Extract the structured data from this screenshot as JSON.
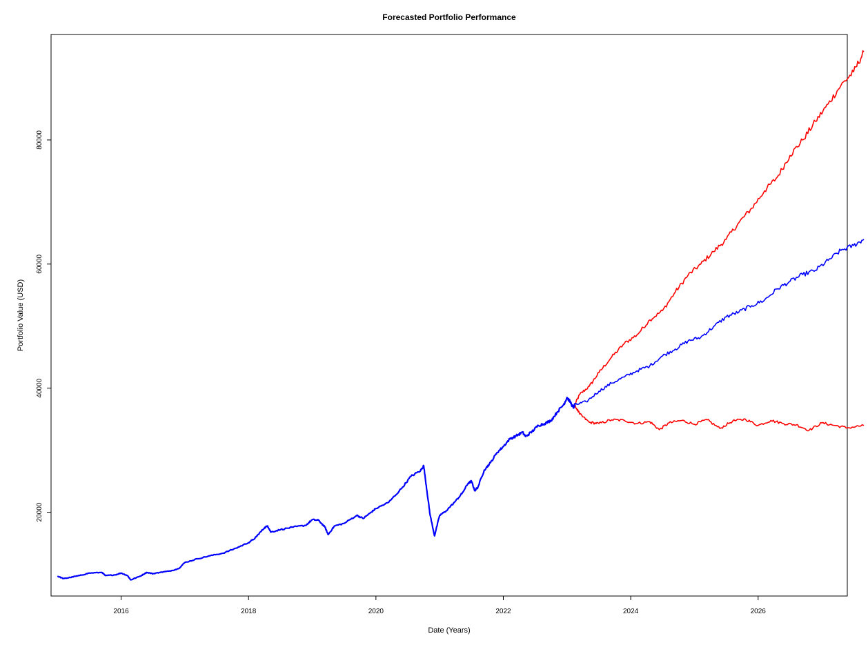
{
  "chart_data": {
    "type": "line",
    "title": "Forecasted Portfolio Performance",
    "xlabel": "Date (Years)",
    "ylabel": "Portfolio Value (USD)",
    "x_ticks": [
      2016,
      2018,
      2020,
      2022,
      2024,
      2026
    ],
    "y_ticks": [
      20000,
      40000,
      60000,
      80000
    ],
    "xlim": [
      2014.9,
      2027.4
    ],
    "ylim": [
      6500,
      97000
    ],
    "grid": false,
    "legend": "none",
    "series": [
      {
        "role": "historical",
        "color": "#0000ff",
        "points": [
          [
            2015.0,
            9700
          ],
          [
            2015.1,
            9300
          ],
          [
            2015.2,
            9500
          ],
          [
            2015.35,
            9800
          ],
          [
            2015.5,
            10200
          ],
          [
            2015.7,
            10300
          ],
          [
            2015.75,
            9800
          ],
          [
            2015.9,
            9900
          ],
          [
            2016.0,
            10200
          ],
          [
            2016.1,
            9800
          ],
          [
            2016.15,
            9100
          ],
          [
            2016.3,
            9700
          ],
          [
            2016.4,
            10300
          ],
          [
            2016.5,
            10100
          ],
          [
            2016.6,
            10300
          ],
          [
            2016.75,
            10500
          ],
          [
            2016.9,
            10900
          ],
          [
            2017.0,
            11900
          ],
          [
            2017.2,
            12500
          ],
          [
            2017.4,
            13000
          ],
          [
            2017.6,
            13400
          ],
          [
            2017.8,
            14200
          ],
          [
            2018.0,
            15100
          ],
          [
            2018.1,
            15800
          ],
          [
            2018.15,
            16400
          ],
          [
            2018.25,
            17500
          ],
          [
            2018.3,
            17800
          ],
          [
            2018.35,
            16800
          ],
          [
            2018.5,
            17200
          ],
          [
            2018.7,
            17600
          ],
          [
            2018.9,
            17900
          ],
          [
            2019.0,
            18800
          ],
          [
            2019.1,
            18700
          ],
          [
            2019.2,
            17600
          ],
          [
            2019.25,
            16400
          ],
          [
            2019.35,
            17800
          ],
          [
            2019.5,
            18200
          ],
          [
            2019.7,
            19500
          ],
          [
            2019.8,
            19000
          ],
          [
            2019.9,
            19800
          ],
          [
            2020.0,
            20600
          ],
          [
            2020.2,
            21600
          ],
          [
            2020.4,
            23800
          ],
          [
            2020.55,
            25800
          ],
          [
            2020.7,
            26700
          ],
          [
            2020.75,
            27500
          ],
          [
            2020.8,
            23500
          ],
          [
            2020.85,
            19600
          ],
          [
            2020.92,
            16200
          ],
          [
            2021.0,
            19500
          ],
          [
            2021.1,
            20200
          ],
          [
            2021.25,
            21800
          ],
          [
            2021.35,
            23000
          ],
          [
            2021.45,
            24700
          ],
          [
            2021.5,
            25000
          ],
          [
            2021.55,
            23500
          ],
          [
            2021.6,
            24000
          ],
          [
            2021.7,
            26800
          ],
          [
            2021.8,
            28000
          ],
          [
            2021.9,
            29600
          ],
          [
            2022.0,
            30600
          ],
          [
            2022.1,
            31800
          ],
          [
            2022.2,
            32300
          ],
          [
            2022.3,
            32900
          ],
          [
            2022.35,
            32200
          ],
          [
            2022.45,
            33000
          ],
          [
            2022.55,
            34000
          ],
          [
            2022.65,
            34300
          ],
          [
            2022.75,
            34800
          ],
          [
            2022.85,
            36200
          ],
          [
            2022.95,
            37400
          ],
          [
            2023.0,
            38500
          ],
          [
            2023.05,
            37800
          ],
          [
            2023.1,
            36800
          ],
          [
            2023.12,
            37300
          ]
        ]
      },
      {
        "role": "forecast-upper",
        "color": "#ff0000",
        "points": [
          [
            2023.12,
            37300
          ],
          [
            2023.2,
            39000
          ],
          [
            2023.35,
            40300
          ],
          [
            2023.5,
            42500
          ],
          [
            2023.7,
            45000
          ],
          [
            2023.9,
            47200
          ],
          [
            2024.1,
            48600
          ],
          [
            2024.3,
            51000
          ],
          [
            2024.5,
            52500
          ],
          [
            2024.7,
            55500
          ],
          [
            2024.9,
            58200
          ],
          [
            2025.1,
            60000
          ],
          [
            2025.3,
            62000
          ],
          [
            2025.5,
            64000
          ],
          [
            2025.7,
            66700
          ],
          [
            2025.9,
            69000
          ],
          [
            2026.1,
            71800
          ],
          [
            2026.3,
            74000
          ],
          [
            2026.5,
            77500
          ],
          [
            2026.7,
            80000
          ],
          [
            2026.9,
            83000
          ],
          [
            2027.1,
            85800
          ],
          [
            2027.3,
            88800
          ],
          [
            2027.5,
            91000
          ],
          [
            2027.66,
            94200
          ]
        ]
      },
      {
        "role": "forecast-median",
        "color": "#0000ff",
        "points": [
          [
            2023.12,
            37300
          ],
          [
            2023.3,
            37800
          ],
          [
            2023.5,
            39500
          ],
          [
            2023.7,
            40800
          ],
          [
            2023.9,
            41800
          ],
          [
            2024.1,
            42800
          ],
          [
            2024.3,
            43600
          ],
          [
            2024.5,
            45200
          ],
          [
            2024.7,
            46300
          ],
          [
            2024.9,
            47600
          ],
          [
            2025.1,
            48200
          ],
          [
            2025.3,
            49900
          ],
          [
            2025.5,
            51500
          ],
          [
            2025.7,
            52300
          ],
          [
            2025.9,
            53300
          ],
          [
            2026.1,
            54200
          ],
          [
            2026.3,
            56000
          ],
          [
            2026.5,
            57200
          ],
          [
            2026.7,
            58300
          ],
          [
            2026.9,
            59000
          ],
          [
            2027.1,
            60600
          ],
          [
            2027.3,
            62200
          ],
          [
            2027.5,
            63000
          ],
          [
            2027.66,
            64000
          ]
        ]
      },
      {
        "role": "forecast-lower",
        "color": "#ff0000",
        "points": [
          [
            2023.12,
            37300
          ],
          [
            2023.2,
            35800
          ],
          [
            2023.35,
            34500
          ],
          [
            2023.5,
            34300
          ],
          [
            2023.7,
            34900
          ],
          [
            2023.9,
            34800
          ],
          [
            2024.1,
            34300
          ],
          [
            2024.3,
            34600
          ],
          [
            2024.45,
            33300
          ],
          [
            2024.6,
            34400
          ],
          [
            2024.8,
            34800
          ],
          [
            2025.0,
            34200
          ],
          [
            2025.2,
            34900
          ],
          [
            2025.4,
            33500
          ],
          [
            2025.6,
            34700
          ],
          [
            2025.8,
            35000
          ],
          [
            2026.0,
            34000
          ],
          [
            2026.2,
            34800
          ],
          [
            2026.4,
            34300
          ],
          [
            2026.6,
            34100
          ],
          [
            2026.8,
            33200
          ],
          [
            2027.0,
            34400
          ],
          [
            2027.2,
            34000
          ],
          [
            2027.4,
            33600
          ],
          [
            2027.66,
            34000
          ]
        ]
      }
    ]
  }
}
